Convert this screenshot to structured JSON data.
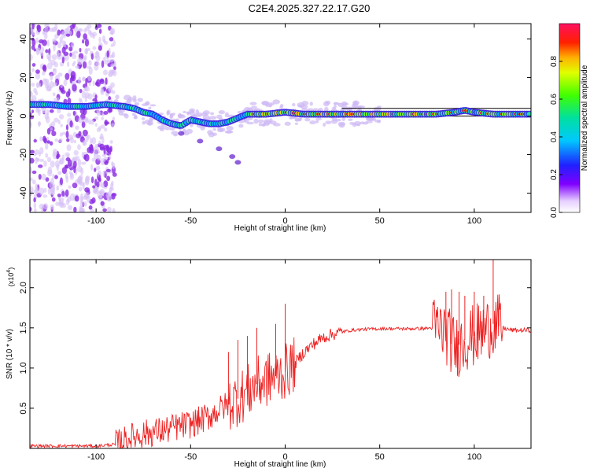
{
  "title": "C2E4.2025.327.22.17.G20",
  "chart_data": [
    {
      "type": "heatmap",
      "xlabel": "Height of straight line (km)",
      "ylabel": "Frequency (Hz)",
      "xlim": [
        -135,
        130
      ],
      "ylim": [
        -50,
        48
      ],
      "xticks": [
        -100,
        -50,
        0,
        50,
        100
      ],
      "yticks": [
        -40,
        -20,
        0,
        20,
        40
      ],
      "colorbar": {
        "label": "Normalized spectral amplitude",
        "range": [
          0,
          1
        ],
        "ticks": [
          "0.0",
          "0.2",
          "0.4",
          "0.6",
          "0.8"
        ],
        "tick_values": [
          0,
          0.2,
          0.4,
          0.6,
          0.8
        ]
      },
      "ridge": [
        [
          -135,
          6
        ],
        [
          -125,
          6
        ],
        [
          -115,
          5
        ],
        [
          -105,
          5
        ],
        [
          -95,
          6
        ],
        [
          -85,
          5
        ],
        [
          -80,
          4
        ],
        [
          -75,
          2
        ],
        [
          -70,
          1
        ],
        [
          -65,
          -2
        ],
        [
          -60,
          -4
        ],
        [
          -55,
          -5
        ],
        [
          -50,
          -2
        ],
        [
          -45,
          -3
        ],
        [
          -40,
          -4
        ],
        [
          -35,
          -4
        ],
        [
          -30,
          -3
        ],
        [
          -25,
          -1
        ],
        [
          -20,
          1
        ],
        [
          -10,
          1
        ],
        [
          0,
          2
        ],
        [
          10,
          1
        ],
        [
          20,
          1
        ],
        [
          40,
          1
        ],
        [
          60,
          1
        ],
        [
          80,
          1
        ],
        [
          90,
          2
        ],
        [
          95,
          3
        ],
        [
          100,
          2
        ],
        [
          110,
          1
        ],
        [
          118,
          1
        ],
        [
          130,
          1
        ]
      ],
      "reference_lines": [
        4,
        0
      ],
      "faint_branch": [
        [
          -55,
          -9
        ],
        [
          -45,
          -13
        ],
        [
          -35,
          -17
        ],
        [
          -28,
          -21
        ],
        [
          -25,
          -24
        ]
      ]
    },
    {
      "type": "line",
      "xlabel": "Height of straight line (km)",
      "ylabel": "SNR (10 * v/v)",
      "yscale_label": "(x10",
      "yscale_exp": "4",
      "ylabel_suffix": ")",
      "xlim": [
        -135,
        130
      ],
      "ylim": [
        0,
        2.35
      ],
      "xticks": [
        -100,
        -50,
        0,
        50,
        100
      ],
      "yticks": [
        0.5,
        1.0,
        1.5,
        2.0
      ],
      "ytick_labels": [
        "0.5",
        "1.0",
        "1.5",
        "2.0"
      ],
      "series": [
        {
          "name": "SNR",
          "color": "#ee2222",
          "x": [
            -135,
            -120,
            -100,
            -90,
            -85,
            -80,
            -75,
            -70,
            -65,
            -60,
            -55,
            -50,
            -45,
            -40,
            -35,
            -30,
            -25,
            -20,
            -15,
            -10,
            -5,
            0,
            5,
            10,
            15,
            20,
            25,
            30,
            35,
            40,
            50,
            60,
            70,
            80,
            85,
            88,
            90,
            95,
            100,
            105,
            110,
            115,
            120,
            130
          ],
          "y": [
            0.03,
            0.03,
            0.03,
            0.05,
            0.1,
            0.15,
            0.18,
            0.2,
            0.22,
            0.25,
            0.28,
            0.3,
            0.35,
            0.4,
            0.48,
            0.55,
            0.62,
            0.7,
            0.8,
            0.85,
            0.9,
            0.95,
            1.05,
            1.2,
            1.3,
            1.38,
            1.42,
            1.45,
            1.47,
            1.48,
            1.49,
            1.49,
            1.49,
            1.5,
            1.45,
            1.3,
            1.25,
            1.35,
            1.4,
            1.45,
            1.55,
            1.5,
            1.47,
            1.47
          ]
        }
      ],
      "spikes": [
        [
          -30,
          1.2
        ],
        [
          -25,
          1.35
        ],
        [
          -20,
          1.4
        ],
        [
          -15,
          1.5
        ],
        [
          -5,
          1.55
        ],
        [
          0,
          1.8
        ],
        [
          85,
          1.95
        ],
        [
          88,
          1.98
        ],
        [
          92,
          1.95
        ],
        [
          95,
          1.9
        ],
        [
          100,
          1.95
        ],
        [
          105,
          1.9
        ],
        [
          110,
          2.35
        ],
        [
          113,
          1.75
        ]
      ]
    }
  ]
}
